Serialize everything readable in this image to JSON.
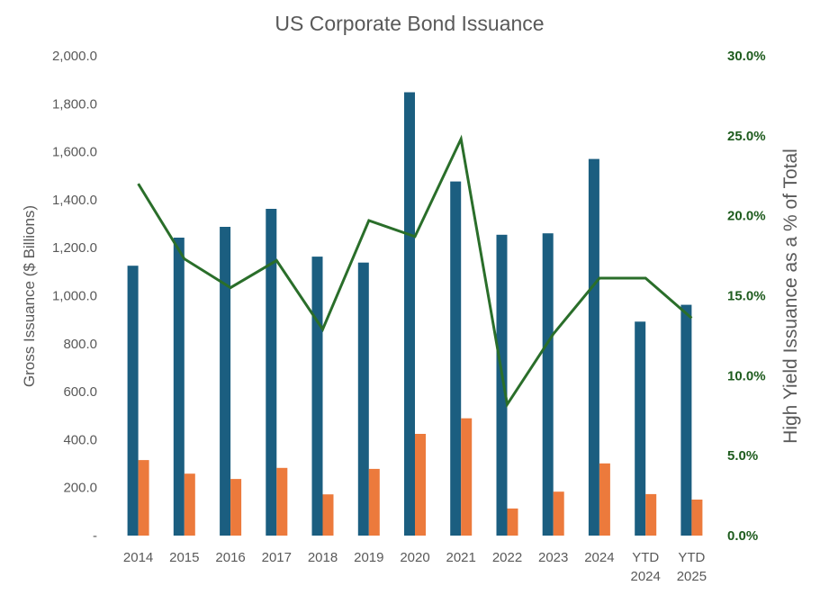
{
  "chart_data": {
    "type": "bar",
    "title": "US Corporate Bond Issuance",
    "categories": [
      "2014",
      "2015",
      "2016",
      "2017",
      "2018",
      "2019",
      "2020",
      "2021",
      "2022",
      "2023",
      "2024",
      "YTD 2024",
      "YTD 2025"
    ],
    "category_lines": [
      [
        "2014"
      ],
      [
        "2015"
      ],
      [
        "2016"
      ],
      [
        "2017"
      ],
      [
        "2018"
      ],
      [
        "2019"
      ],
      [
        "2020"
      ],
      [
        "2021"
      ],
      [
        "2022"
      ],
      [
        "2023"
      ],
      [
        "2024"
      ],
      [
        "YTD",
        "2024"
      ],
      [
        "YTD",
        "2025"
      ]
    ],
    "series": [
      {
        "type": "bar",
        "axis": "left",
        "color": "#1b5e80",
        "values": [
          1125,
          1242,
          1287,
          1362,
          1163,
          1138,
          1848,
          1476,
          1254,
          1260,
          1570,
          892,
          962
        ]
      },
      {
        "type": "bar",
        "axis": "left",
        "color": "#ec7a3c",
        "values": [
          315,
          258,
          236,
          282,
          172,
          278,
          424,
          489,
          113,
          183,
          301,
          173,
          150
        ]
      },
      {
        "type": "line",
        "axis": "right",
        "color": "#2a6e2a",
        "values": [
          22.0,
          17.3,
          15.5,
          17.2,
          12.9,
          19.7,
          18.7,
          24.8,
          8.2,
          12.6,
          16.1,
          16.1,
          13.6
        ]
      }
    ],
    "ylabel": "Gross Issuance ($ Billions)",
    "ylim": [
      0,
      2000
    ],
    "yticks": [
      "-",
      "200.0",
      "400.0",
      "600.0",
      "800.0",
      "1,000.0",
      "1,200.0",
      "1,400.0",
      "1,600.0",
      "1,800.0",
      "2,000.0"
    ],
    "y2label": "High Yield Issuance as a % of Total",
    "y2lim": [
      0,
      30
    ],
    "y2ticks": [
      "0.0%",
      "5.0%",
      "10.0%",
      "15.0%",
      "20.0%",
      "25.0%",
      "30.0%"
    ],
    "grid": false,
    "legend": "none"
  }
}
